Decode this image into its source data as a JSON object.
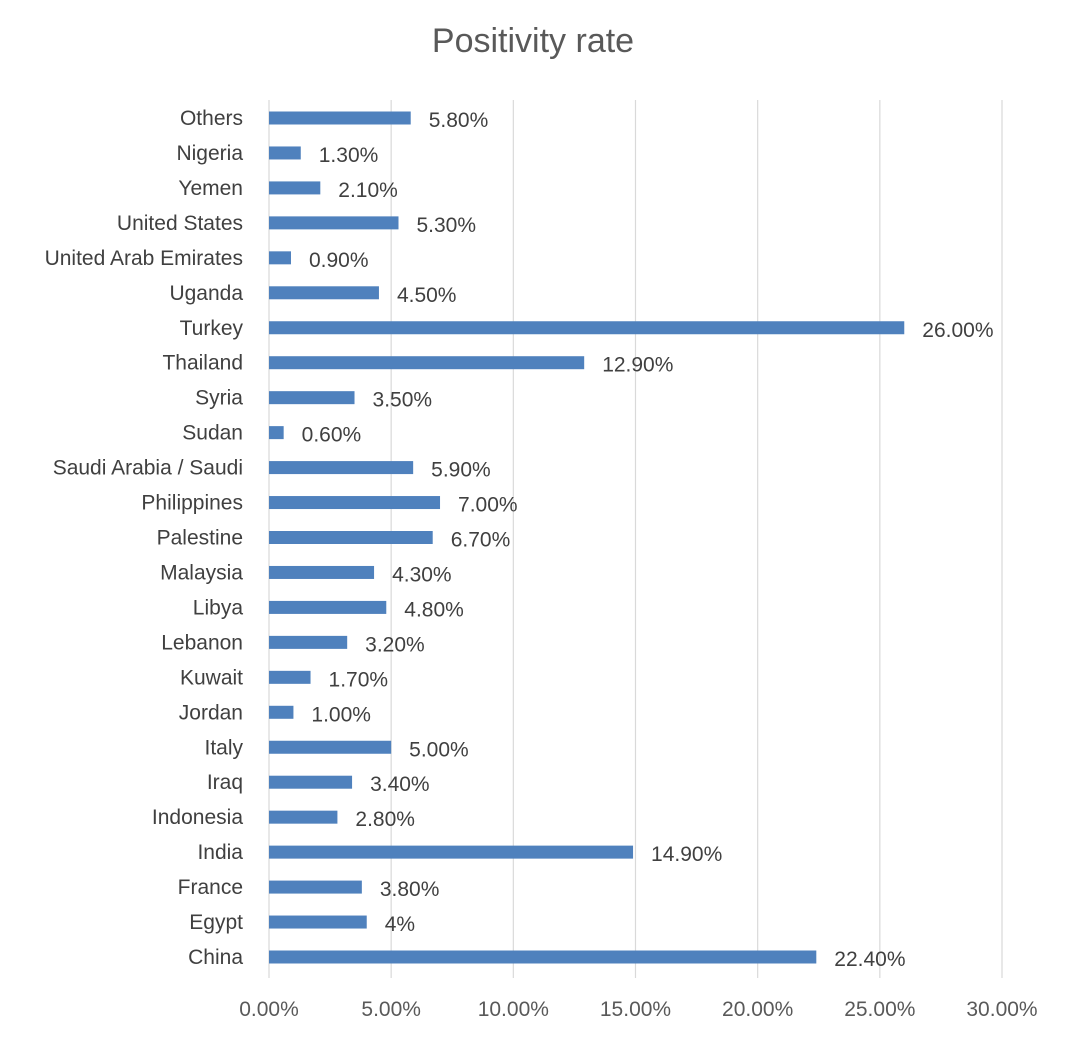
{
  "chart_data": {
    "type": "bar",
    "orientation": "horizontal",
    "title": "Positivity rate",
    "xlabel": "",
    "ylabel": "",
    "xlim": [
      0,
      30
    ],
    "grid": true,
    "legend": "none",
    "bar_color": "#4F81BD",
    "ticks": [
      "0.00%",
      "5.00%",
      "10.00%",
      "15.00%",
      "20.00%",
      "25.00%",
      "30.00%"
    ],
    "categories": [
      "Others",
      "Nigeria",
      "Yemen",
      "United States",
      "United Arab Emirates",
      "Uganda",
      "Turkey",
      "Thailand",
      "Syria",
      "Sudan",
      "Saudi Arabia / Saudi",
      "Philippines",
      "Palestine",
      "Malaysia",
      "Libya",
      "Lebanon",
      "Kuwait",
      "Jordan",
      "Italy",
      "Iraq",
      "Indonesia",
      "India",
      "France",
      "Egypt",
      "China"
    ],
    "values": [
      5.8,
      1.3,
      2.1,
      5.3,
      0.9,
      4.5,
      26.0,
      12.9,
      3.5,
      0.6,
      5.9,
      7.0,
      6.7,
      4.3,
      4.8,
      3.2,
      1.7,
      1.0,
      5.0,
      3.4,
      2.8,
      14.9,
      3.8,
      4.0,
      22.4
    ],
    "value_labels": [
      "5.80%",
      "1.30%",
      "2.10%",
      "5.30%",
      "0.90%",
      "4.50%",
      "26.00%",
      "12.90%",
      "3.50%",
      "0.60%",
      "5.90%",
      "7.00%",
      "6.70%",
      "4.30%",
      "4.80%",
      "3.20%",
      "1.70%",
      "1.00%",
      "5.00%",
      "3.40%",
      "2.80%",
      "14.90%",
      "3.80%",
      "4%",
      "22.40%"
    ]
  }
}
